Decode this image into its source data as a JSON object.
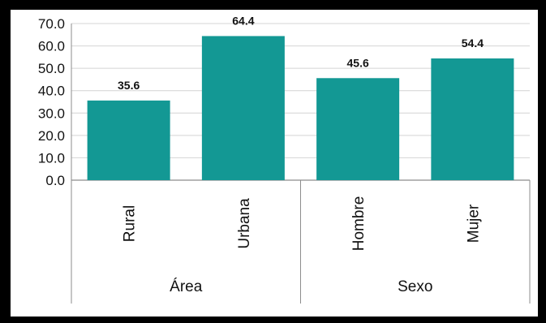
{
  "chart_data": {
    "type": "bar",
    "title": "",
    "xlabel": "",
    "ylabel": "",
    "ylim": [
      0,
      70
    ],
    "yticks": [
      "0.0",
      "10.0",
      "20.0",
      "30.0",
      "40.0",
      "50.0",
      "60.0",
      "70.0"
    ],
    "grid": true,
    "categories": [
      "Rural",
      "Urbana",
      "Hombre",
      "Mujer"
    ],
    "values": [
      35.6,
      64.4,
      45.6,
      54.4
    ],
    "value_labels": [
      "35.6",
      "64.4",
      "45.6",
      "54.4"
    ],
    "groups": [
      {
        "name": "Área",
        "categories": [
          "Rural",
          "Urbana"
        ]
      },
      {
        "name": "Sexo",
        "categories": [
          "Hombre",
          "Mujer"
        ]
      }
    ],
    "bar_color": "#139894",
    "grid_color": "#d4d4d4"
  }
}
